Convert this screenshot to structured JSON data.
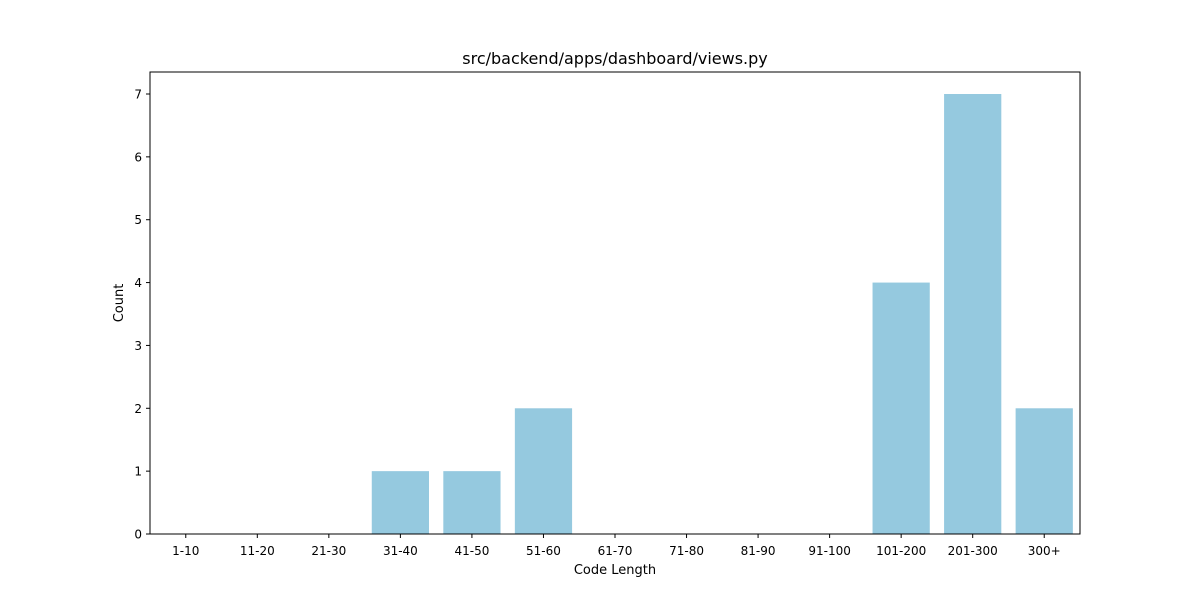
{
  "chart_data": {
    "type": "bar",
    "title": "src/backend/apps/dashboard/views.py",
    "xlabel": "Code Length",
    "ylabel": "Count",
    "categories": [
      "1-10",
      "11-20",
      "21-30",
      "31-40",
      "41-50",
      "51-60",
      "61-70",
      "71-80",
      "81-90",
      "91-100",
      "101-200",
      "201-300",
      "300+"
    ],
    "values": [
      0,
      0,
      0,
      1,
      1,
      2,
      0,
      0,
      0,
      0,
      4,
      7,
      2
    ],
    "ylim": [
      0,
      7.35
    ],
    "yticks": [
      0,
      1,
      2,
      3,
      4,
      5,
      6,
      7
    ],
    "bar_color": "#95c9df",
    "grid": false,
    "legend": "none"
  }
}
